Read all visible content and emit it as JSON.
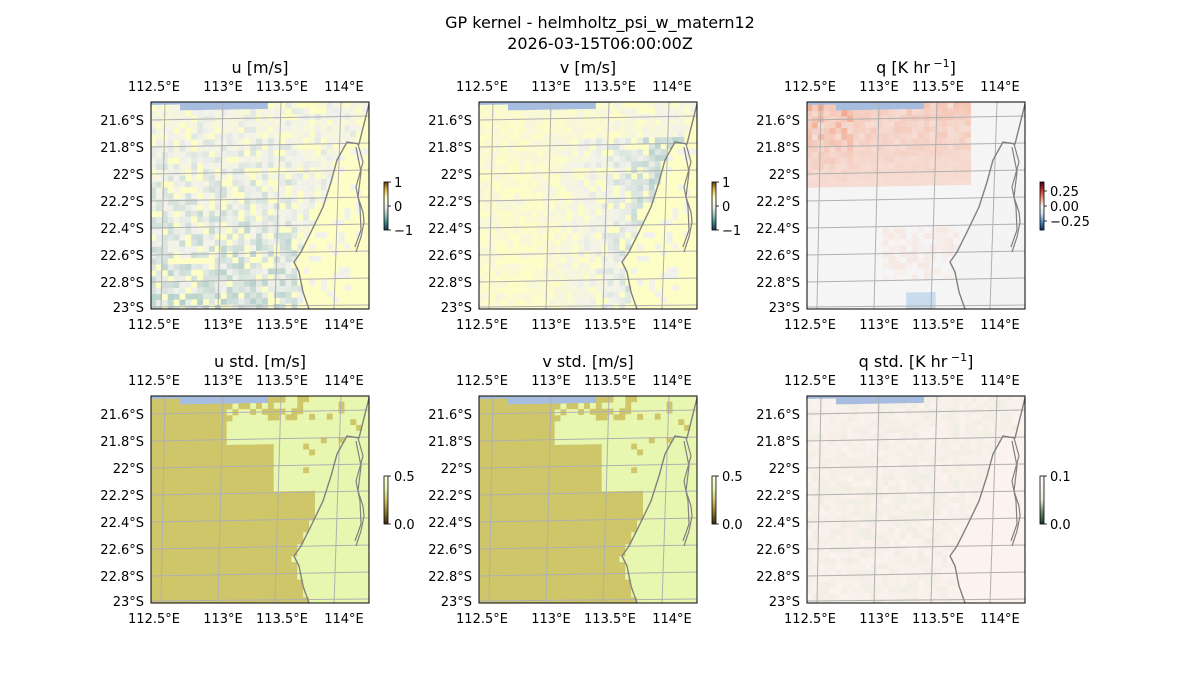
{
  "figure": {
    "title_line1": "GP kernel - helmholtz_psi_w_matern12",
    "title_line2": "2026-03-15T06:00:00Z"
  },
  "colors": {
    "background": "#ffffff",
    "ocean": "#a6bde0",
    "gridline": "#b0b0b0",
    "coastline": "#808080",
    "mean_wind_low": "#a9c9c4",
    "mean_wind_mid": "#f2f2ec",
    "mean_wind_high": "#fdfdc6",
    "q_pos": "#f2906e",
    "q_neg": "#c9dcef",
    "std_high": "#cfc66a",
    "std_low": "#e8f7b0",
    "qstd_base": "#fcf2ee",
    "qstd_alt": "#e8ecdc"
  },
  "axes_ticks": {
    "x_labels": [
      "112.5°E",
      "113°E",
      "113.5°E",
      "114°E"
    ],
    "y_labels": [
      "21.6°S",
      "21.8°S",
      "22°S",
      "22.2°S",
      "22.4°S",
      "22.6°S",
      "22.8°S",
      "23°S"
    ]
  },
  "chart_data": [
    {
      "type": "heatmap",
      "title": "u [m/s]",
      "field": "u",
      "colorbar_ticks": [
        "1",
        "0",
        "−1"
      ],
      "colorbar_values": [
        1,
        0,
        -1
      ],
      "clim": [
        -1,
        1
      ]
    },
    {
      "type": "heatmap",
      "title": "v [m/s]",
      "field": "v",
      "colorbar_ticks": [
        "1",
        "0",
        "−1"
      ],
      "colorbar_values": [
        1,
        0,
        -1
      ],
      "clim": [
        -1,
        1
      ]
    },
    {
      "type": "heatmap",
      "title": "q [K hr",
      "title_sup": "−1",
      "title_end": "]",
      "field": "q",
      "colorbar_ticks": [
        "0.25",
        "0.00",
        "−0.25"
      ],
      "colorbar_values": [
        0.25,
        0.0,
        -0.25
      ],
      "clim": [
        -0.4,
        0.4
      ]
    },
    {
      "type": "heatmap",
      "title": "u std. [m/s]",
      "field": "u_std",
      "colorbar_ticks": [
        "0.5",
        "0.0"
      ],
      "colorbar_values": [
        0.5,
        0.0
      ],
      "clim": [
        0,
        0.5
      ]
    },
    {
      "type": "heatmap",
      "title": "v std. [m/s]",
      "field": "v_std",
      "colorbar_ticks": [
        "0.5",
        "0.0"
      ],
      "colorbar_values": [
        0.5,
        0.0
      ],
      "clim": [
        0,
        0.5
      ]
    },
    {
      "type": "heatmap",
      "title": "q std. [K hr",
      "title_sup": "−1",
      "title_end": "]",
      "field": "q_std",
      "colorbar_ticks": [
        "0.1",
        "0.0"
      ],
      "colorbar_values": [
        0.1,
        0.0
      ],
      "clim": [
        0,
        0.1
      ]
    }
  ]
}
